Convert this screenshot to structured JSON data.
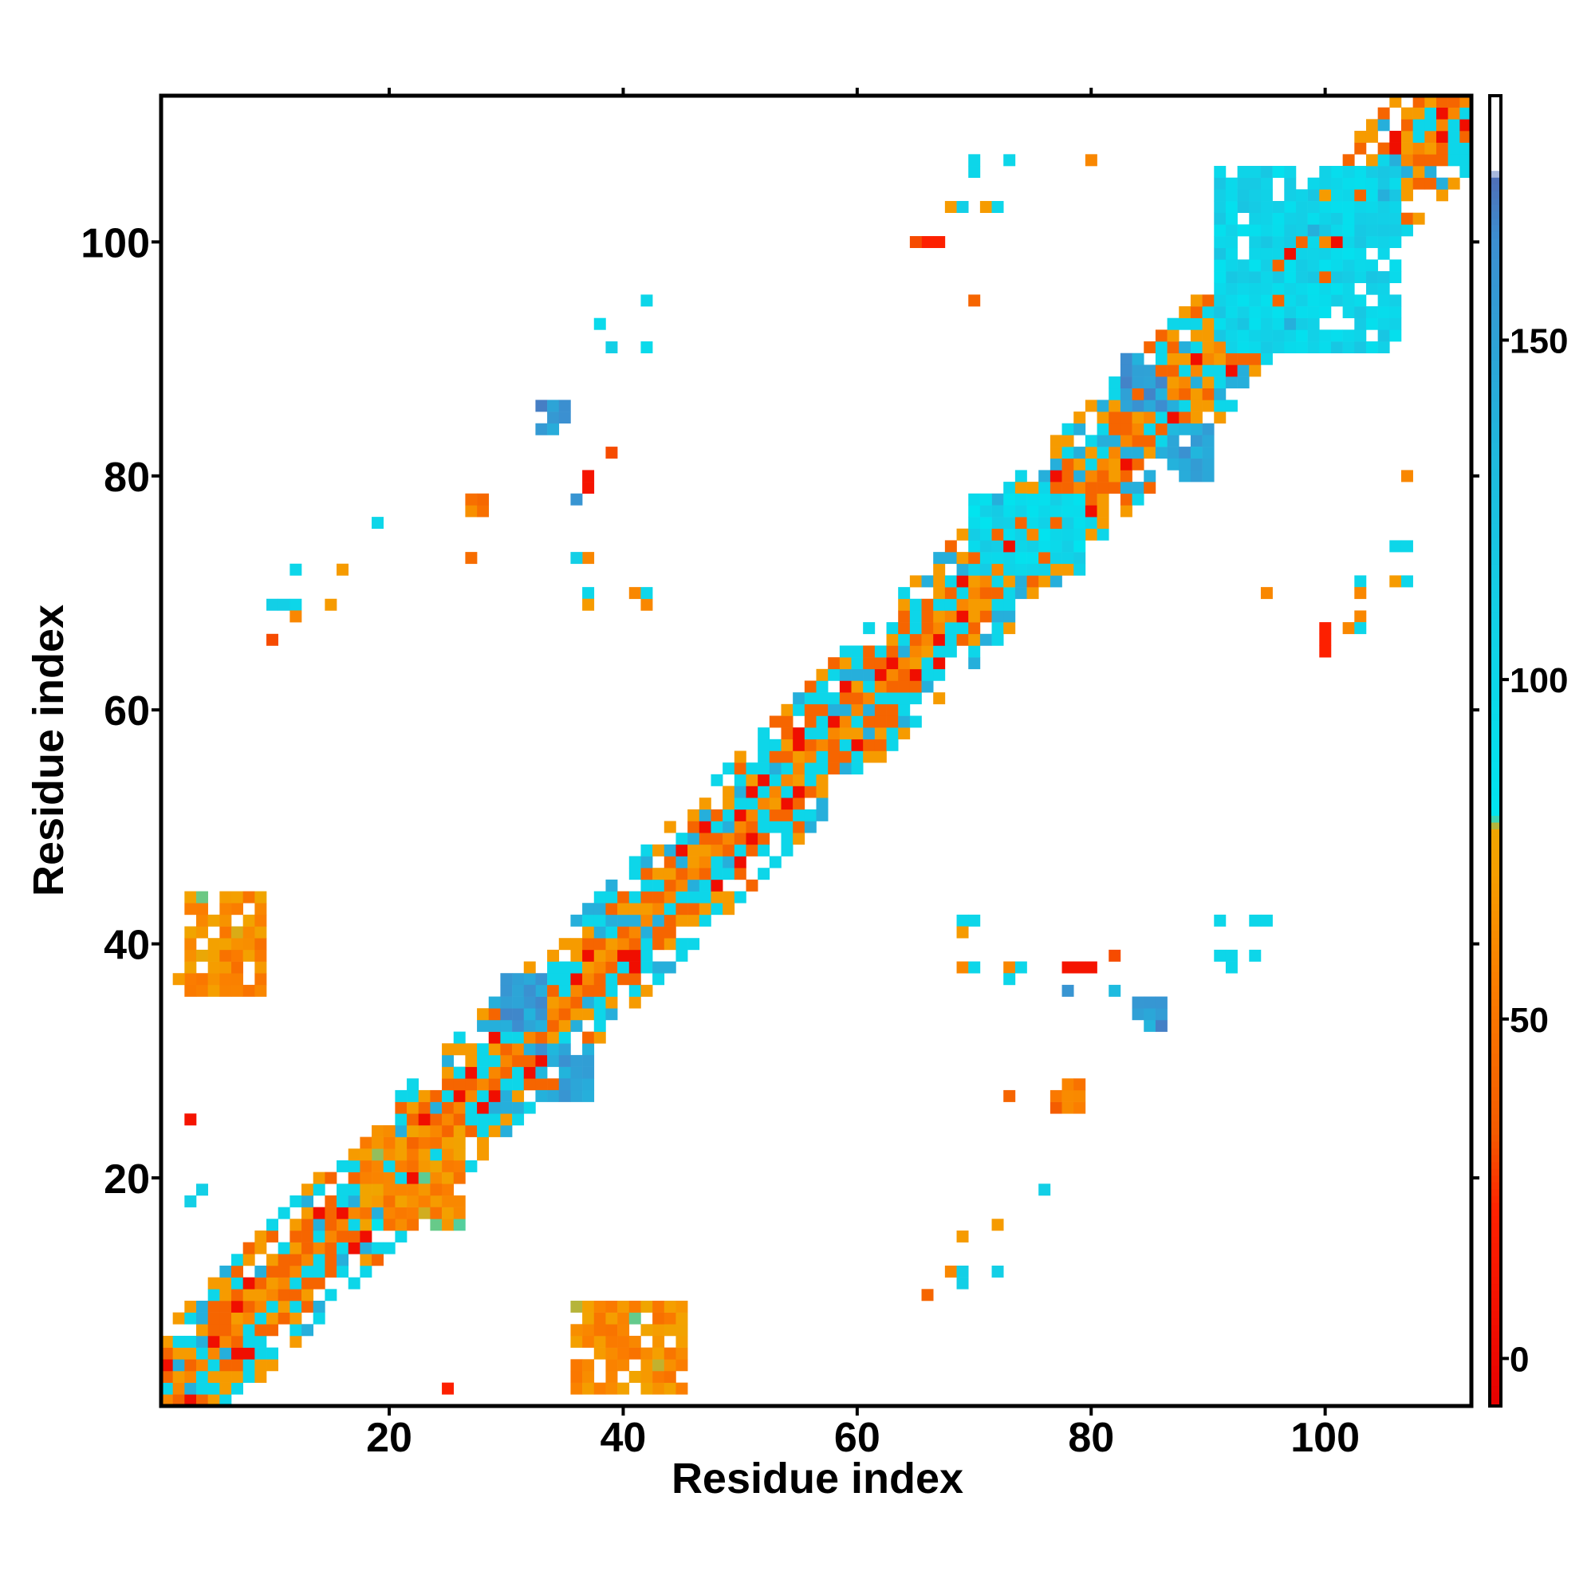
{
  "chart_data": {
    "type": "heatmap",
    "title": "",
    "xlabel": "Residue index",
    "ylabel": "Residue index",
    "xlim": [
      0.5,
      112.5
    ],
    "ylim": [
      0.5,
      112.5
    ],
    "x_ticks": [
      20,
      40,
      60,
      80,
      100
    ],
    "y_ticks": [
      20,
      40,
      60,
      80,
      100
    ],
    "colorbar": {
      "range": [
        -7,
        186
      ],
      "ticks": [
        0,
        50,
        100,
        150
      ],
      "stops": [
        {
          "value": -7,
          "color": "#e60000"
        },
        {
          "value": 22,
          "color": "#ff2200"
        },
        {
          "value": 33,
          "color": "#f35a00"
        },
        {
          "value": 55,
          "color": "#fb7d00"
        },
        {
          "value": 72,
          "color": "#f59f00"
        },
        {
          "value": 78,
          "color": "#f0a500"
        },
        {
          "value": 80,
          "color": "#00e5f0"
        },
        {
          "value": 110,
          "color": "#13cfe6"
        },
        {
          "value": 135,
          "color": "#21b6dd"
        },
        {
          "value": 165,
          "color": "#3c8ed0"
        },
        {
          "value": 174,
          "color": "#4f6fb8"
        },
        {
          "value": 175,
          "color": "#ffffff"
        },
        {
          "value": 186,
          "color": "#ffffff"
        }
      ]
    },
    "contacts": {
      "diagonal_band": {
        "from": 1,
        "to": 112,
        "max_offset": 6
      },
      "clusters": [
        {
          "x": [
            30,
            33
          ],
          "y": [
            33,
            37
          ],
          "value": 150
        },
        {
          "x": [
            33,
            37
          ],
          "y": [
            27,
            31
          ],
          "value": 145
        },
        {
          "x": [
            83,
            86
          ],
          "y": [
            86,
            90
          ],
          "value": 150
        },
        {
          "x": [
            87,
            90
          ],
          "y": [
            80,
            84
          ],
          "value": 145
        },
        {
          "x": [
            3,
            9
          ],
          "y": [
            36,
            44
          ],
          "value": 60
        },
        {
          "x": [
            36,
            45
          ],
          "y": [
            2,
            9
          ],
          "value": 60
        },
        {
          "x": [
            91,
            106
          ],
          "y": [
            91,
            106
          ],
          "value": 100
        },
        {
          "x": [
            70,
            79
          ],
          "y": [
            72,
            78
          ],
          "value": 95
        },
        {
          "x": [
            18,
            26
          ],
          "y": [
            16,
            24
          ],
          "value": 60
        },
        {
          "x": [
            27,
            28
          ],
          "y": [
            77,
            78
          ],
          "value": 45
        },
        {
          "x": [
            77,
            79
          ],
          "y": [
            26,
            28
          ],
          "value": 45
        },
        {
          "x": [
            33,
            35
          ],
          "y": [
            84,
            86
          ],
          "value": 150
        },
        {
          "x": [
            84,
            86
          ],
          "y": [
            33,
            35
          ],
          "value": 150
        }
      ],
      "scattered": [
        [
          38,
          93,
          95
        ],
        [
          39,
          91,
          110
        ],
        [
          42,
          95,
          100
        ],
        [
          42,
          91,
          95
        ],
        [
          39,
          82,
          30
        ],
        [
          37,
          80,
          10
        ],
        [
          37,
          79,
          10
        ],
        [
          36,
          78,
          160
        ],
        [
          37,
          73,
          60
        ],
        [
          36,
          73,
          110
        ],
        [
          37,
          70,
          100
        ],
        [
          37,
          69,
          70
        ],
        [
          41,
          70,
          60
        ],
        [
          42,
          69,
          60
        ],
        [
          42,
          70,
          100
        ],
        [
          10,
          69,
          110
        ],
        [
          11,
          69,
          110
        ],
        [
          12,
          69,
          100
        ],
        [
          12,
          68,
          60
        ],
        [
          10,
          66,
          30
        ],
        [
          12,
          72,
          100
        ],
        [
          16,
          72,
          70
        ],
        [
          15,
          69,
          70
        ],
        [
          19,
          76,
          100
        ],
        [
          27,
          73,
          45
        ],
        [
          70,
          107,
          100
        ],
        [
          73,
          107,
          100
        ],
        [
          70,
          106,
          100
        ],
        [
          80,
          107,
          60
        ],
        [
          68,
          103,
          70
        ],
        [
          69,
          103,
          110
        ],
        [
          71,
          103,
          70
        ],
        [
          72,
          103,
          100
        ],
        [
          66,
          100,
          20
        ],
        [
          67,
          100,
          20
        ],
        [
          65,
          100,
          30
        ],
        [
          70,
          95,
          40
        ],
        [
          69,
          42,
          100
        ],
        [
          70,
          42,
          100
        ],
        [
          69,
          41,
          70
        ],
        [
          69,
          38,
          60
        ],
        [
          70,
          38,
          100
        ],
        [
          73,
          38,
          60
        ],
        [
          74,
          38,
          100
        ],
        [
          73,
          37,
          100
        ],
        [
          78,
          38,
          10
        ],
        [
          79,
          38,
          10
        ],
        [
          80,
          38,
          10
        ],
        [
          82,
          39,
          30
        ],
        [
          78,
          36,
          160
        ],
        [
          82,
          36,
          130
        ],
        [
          91,
          42,
          100
        ],
        [
          94,
          42,
          100
        ],
        [
          95,
          42,
          100
        ],
        [
          91,
          39,
          100
        ],
        [
          92,
          39,
          100
        ],
        [
          92,
          38,
          100
        ],
        [
          94,
          39,
          100
        ],
        [
          73,
          27,
          40
        ],
        [
          76,
          19,
          110
        ],
        [
          72,
          16,
          70
        ],
        [
          69,
          15,
          70
        ],
        [
          68,
          12,
          60
        ],
        [
          69,
          12,
          110
        ],
        [
          69,
          11,
          110
        ],
        [
          72,
          12,
          110
        ],
        [
          66,
          10,
          40
        ],
        [
          3,
          25,
          10
        ],
        [
          25,
          2,
          20
        ],
        [
          3,
          18,
          110
        ],
        [
          4,
          19,
          110
        ],
        [
          2,
          37,
          70
        ],
        [
          95,
          70,
          60
        ],
        [
          107,
          80,
          60
        ],
        [
          100,
          67,
          20
        ],
        [
          100,
          66,
          20
        ],
        [
          100,
          65,
          20
        ],
        [
          102,
          67,
          60
        ],
        [
          103,
          68,
          60
        ],
        [
          103,
          67,
          100
        ],
        [
          103,
          71,
          100
        ],
        [
          103,
          70,
          60
        ],
        [
          106,
          71,
          70
        ],
        [
          107,
          71,
          100
        ],
        [
          106,
          74,
          100
        ],
        [
          107,
          74,
          100
        ]
      ]
    }
  }
}
